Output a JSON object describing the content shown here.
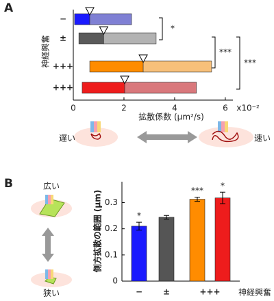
{
  "chart_data": [
    {
      "type": "range-bar",
      "panel": "A",
      "y_label": "神経興奮",
      "x_label": "拡散係数 (μm²/s)",
      "x_scale_label": "x10⁻²",
      "categories": [
        "−",
        "±",
        "+++",
        "+++"
      ],
      "label_colors": [
        "#1a1aff",
        "#444444",
        "#8b1a1a",
        "#8b1a1a"
      ],
      "low": [
        0.05,
        0.22,
        0.65,
        0.35
      ],
      "median": [
        0.65,
        1.2,
        2.76,
        2.03
      ],
      "high": [
        2.3,
        3.27,
        5.46,
        4.86
      ],
      "dark_colors": [
        "#1a1aff",
        "#5a5a5a",
        "#ff8c00",
        "#ee1c1c"
      ],
      "light_colors": [
        "#7f80d4",
        "#b3b3b3",
        "#f7c07a",
        "#d9787c"
      ],
      "xlim": [
        0,
        6.3
      ],
      "xticks": [
        0,
        2,
        4,
        6
      ],
      "significance": [
        {
          "from": 0,
          "to": 1,
          "label": "*"
        },
        {
          "from": 1,
          "to": 2,
          "label": "***"
        },
        {
          "from": 1,
          "to": 3,
          "label": "***"
        }
      ],
      "slow_label": "遅い",
      "fast_label": "速い"
    },
    {
      "type": "bar",
      "panel": "B",
      "y_label": "側方拡散の範囲 (μm)",
      "x_title": "神経興奮",
      "categories": [
        "−",
        "±",
        "+++",
        null
      ],
      "label_colors": [
        "#1a1aff",
        "#222222",
        "#8b1a1a",
        "#8b1a1a"
      ],
      "values": [
        0.21,
        0.244,
        0.313,
        0.318
      ],
      "errors": [
        0.015,
        0.007,
        0.008,
        0.022
      ],
      "stars": [
        "*",
        null,
        "***",
        "*"
      ],
      "colors": [
        "#1a1aff",
        "#555555",
        "#ff8c00",
        "#ee1c1c"
      ],
      "ylim": [
        0,
        0.38
      ],
      "yticks": [
        0,
        0.1,
        0.2,
        0.3
      ],
      "wide_label": "広い",
      "narrow_label": "狭い"
    }
  ]
}
